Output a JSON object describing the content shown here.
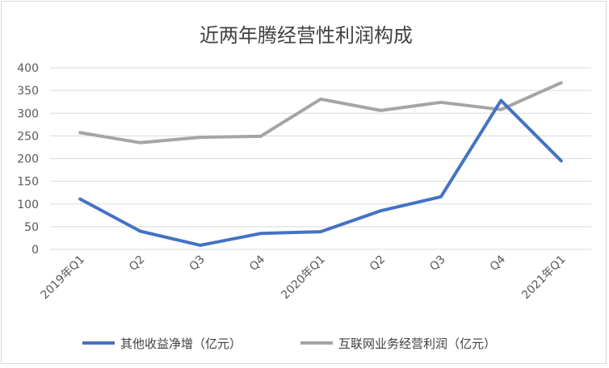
{
  "chart_data": {
    "type": "line",
    "title": "近两年腾经营性利润构成",
    "categories": [
      "2019年Q1",
      "Q2",
      "Q3",
      "Q4",
      "2020年Q1",
      "Q2",
      "Q3",
      "Q4",
      "2021年Q1"
    ],
    "yticks": [
      "0",
      "50",
      "100",
      "150",
      "200",
      "250",
      "300",
      "350",
      "400"
    ],
    "ylim": [
      0,
      400
    ],
    "grid": true,
    "legend_position": "bottom",
    "series": [
      {
        "name": "其他收益净增（亿元）",
        "color": "#4472c4",
        "values": [
          111,
          40,
          9,
          35,
          39,
          85,
          116,
          328,
          195
        ]
      },
      {
        "name": "互联网业务经营利润（亿元）",
        "color": "#a5a5a5",
        "values": [
          257,
          235,
          247,
          249,
          331,
          306,
          324,
          308,
          367
        ]
      }
    ]
  }
}
